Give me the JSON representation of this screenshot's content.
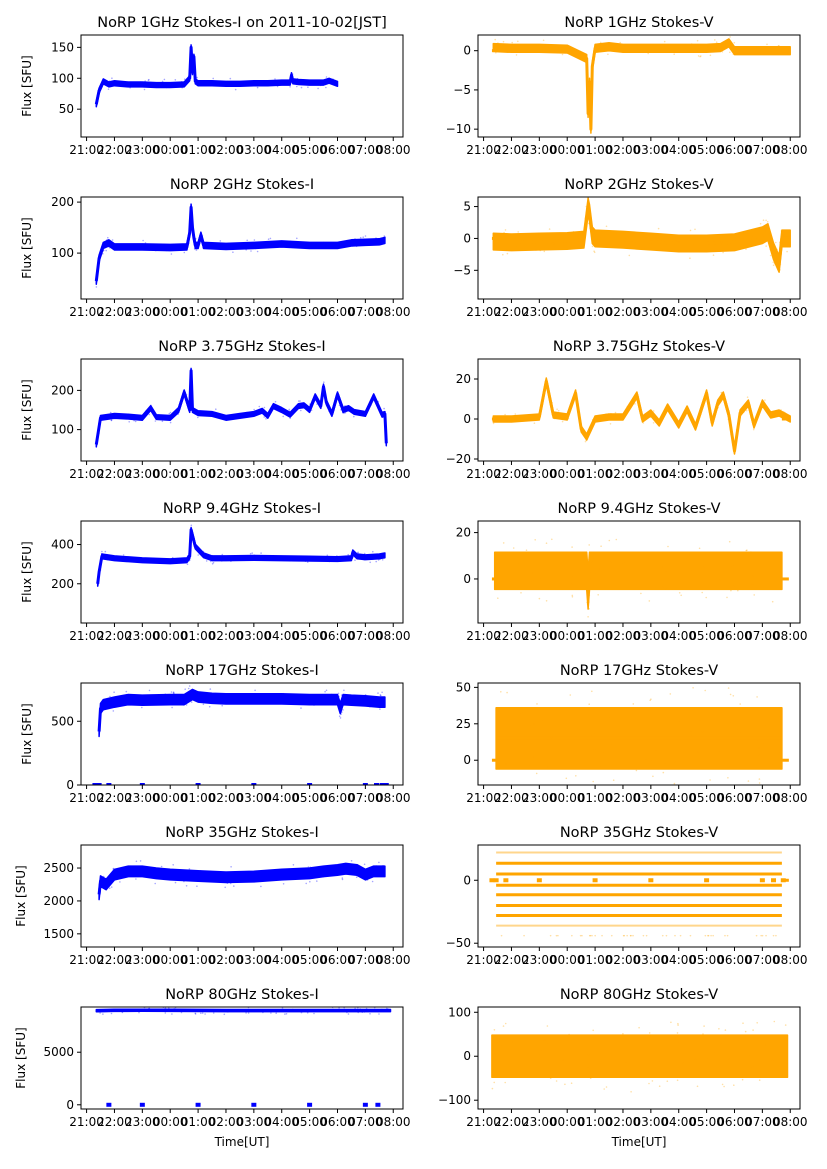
{
  "figure": {
    "xlabel": "Time[UT]",
    "ylabel": "Flux [SFU]",
    "x_tick_labels": [
      "21:00",
      "22:00",
      "23:00",
      "00:00",
      "01:00",
      "02:00",
      "03:00",
      "04:00",
      "05:00",
      "06:00",
      "07:00",
      "08:00"
    ],
    "colors": {
      "stokes_i": "#0000ff",
      "stokes_v": "#ffa500"
    }
  },
  "chart_data": [
    {
      "type": "scatter",
      "title": "NoRP 1GHz Stokes-I on 2011-10-02[JST]",
      "xlabel": "",
      "ylabel": "Flux [SFU]",
      "xlim_hours": [
        20.8,
        32.35
      ],
      "ylim": [
        5,
        170
      ],
      "yticks": [
        50,
        100,
        150
      ],
      "color": "#0000ff",
      "x_hours": [
        21.35,
        21.45,
        21.6,
        21.8,
        22.0,
        22.5,
        23.0,
        23.5,
        24.0,
        24.5,
        24.7,
        24.75,
        24.8,
        24.85,
        24.9,
        25.0,
        25.5,
        26.0,
        26.5,
        27.0,
        27.5,
        28.0,
        28.3,
        28.35,
        28.4,
        28.6,
        29.0,
        29.5,
        29.7,
        30.0
      ],
      "y": [
        58,
        80,
        95,
        90,
        92,
        90,
        90,
        89,
        89,
        90,
        100,
        150,
        110,
        135,
        95,
        92,
        92,
        91,
        91,
        92,
        92,
        93,
        93,
        105,
        95,
        94,
        93,
        93,
        96,
        91
      ],
      "band": 4
    },
    {
      "type": "scatter",
      "title": "NoRP 1GHz Stokes-V",
      "xlabel": "",
      "ylabel": "",
      "xlim_hours": [
        20.8,
        32.35
      ],
      "ylim": [
        -11,
        2
      ],
      "yticks": [
        -10,
        -5,
        0
      ],
      "color": "#ffa500",
      "x_hours": [
        21.35,
        22.0,
        23.0,
        24.0,
        24.7,
        24.75,
        24.8,
        24.85,
        24.9,
        25.0,
        25.5,
        26.0,
        27.0,
        28.0,
        28.5,
        29.0,
        29.5,
        29.8,
        30.0,
        32.0
      ],
      "y": [
        0.4,
        0.3,
        0.3,
        0.2,
        -1,
        -8,
        -4,
        -10,
        -2,
        0.3,
        0.5,
        0.3,
        0.3,
        0.3,
        0.3,
        0.3,
        0.4,
        1.0,
        0,
        0
      ],
      "band": 0.5
    },
    {
      "type": "scatter",
      "title": "NoRP 2GHz Stokes-I",
      "xlabel": "",
      "ylabel": "Flux [SFU]",
      "xlim_hours": [
        20.8,
        32.35
      ],
      "ylim": [
        10,
        210
      ],
      "yticks": [
        100,
        200
      ],
      "color": "#0000ff",
      "x_hours": [
        21.35,
        21.45,
        21.6,
        21.8,
        22.0,
        23.0,
        24.0,
        24.6,
        24.7,
        24.75,
        24.8,
        24.85,
        24.9,
        25.0,
        25.1,
        25.2,
        26.0,
        27.0,
        28.0,
        29.0,
        30.0,
        30.5,
        31.0,
        31.5,
        31.7
      ],
      "y": [
        45,
        90,
        115,
        120,
        112,
        112,
        111,
        112,
        140,
        190,
        150,
        130,
        115,
        115,
        135,
        115,
        113,
        115,
        118,
        115,
        115,
        120,
        121,
        122,
        125
      ],
      "band": 6
    },
    {
      "type": "scatter",
      "title": "NoRP 2GHz Stokes-V",
      "xlabel": "",
      "ylabel": "",
      "xlim_hours": [
        20.8,
        32.35
      ],
      "ylim": [
        -9.5,
        6.5
      ],
      "yticks": [
        -5,
        0,
        5
      ],
      "color": "#ffa500",
      "x_hours": [
        21.35,
        22.0,
        23.0,
        24.0,
        24.6,
        24.75,
        24.8,
        24.9,
        25.0,
        26.0,
        27.0,
        28.0,
        29.0,
        30.0,
        31.0,
        31.2,
        31.4,
        31.6,
        31.7,
        32.0
      ],
      "y": [
        -0.5,
        -0.6,
        -0.5,
        -0.4,
        -0.2,
        5,
        4,
        0.5,
        0,
        -0.2,
        -0.5,
        -0.8,
        -0.8,
        -0.6,
        0.5,
        1,
        -2,
        -4,
        0,
        0
      ],
      "band": 1.3
    },
    {
      "type": "scatter",
      "title": "NoRP 3.75GHz Stokes-I",
      "xlabel": "",
      "ylabel": "Flux [SFU]",
      "xlim_hours": [
        20.8,
        32.35
      ],
      "ylim": [
        20,
        280
      ],
      "yticks": [
        100,
        200
      ],
      "color": "#0000ff",
      "x_hours": [
        21.35,
        21.5,
        22.0,
        22.5,
        23.0,
        23.3,
        23.5,
        24.0,
        24.3,
        24.5,
        24.7,
        24.75,
        24.8,
        25.0,
        25.5,
        26.0,
        26.5,
        27.0,
        27.3,
        27.5,
        27.7,
        28.0,
        28.3,
        28.6,
        28.8,
        29.0,
        29.2,
        29.4,
        29.5,
        29.6,
        29.8,
        30.0,
        30.2,
        30.4,
        30.6,
        31.0,
        31.3,
        31.6,
        31.7,
        31.75
      ],
      "y": [
        62,
        130,
        135,
        133,
        130,
        155,
        132,
        130,
        150,
        195,
        150,
        250,
        150,
        142,
        140,
        130,
        135,
        140,
        148,
        135,
        160,
        150,
        138,
        160,
        162,
        150,
        185,
        160,
        210,
        170,
        140,
        190,
        150,
        155,
        145,
        140,
        185,
        138,
        140,
        65
      ],
      "band": 6
    },
    {
      "type": "scatter",
      "title": "NoRP 3.75GHz Stokes-V",
      "xlabel": "",
      "ylabel": "",
      "xlim_hours": [
        20.8,
        32.35
      ],
      "ylim": [
        -21,
        30
      ],
      "yticks": [
        -20,
        0,
        20
      ],
      "color": "#ffa500",
      "x_hours": [
        21.35,
        22.0,
        23.0,
        23.25,
        23.5,
        24.0,
        24.3,
        24.5,
        24.7,
        25.0,
        25.5,
        26.0,
        26.5,
        26.7,
        27.0,
        27.3,
        27.6,
        28.0,
        28.3,
        28.6,
        29.0,
        29.2,
        29.4,
        29.6,
        29.8,
        30.0,
        30.2,
        30.5,
        30.7,
        31.0,
        31.3,
        31.6,
        32.0
      ],
      "y": [
        0,
        0,
        1,
        19,
        2,
        1,
        13,
        -5,
        -9,
        0,
        1,
        1,
        12,
        0,
        3,
        -2,
        6,
        -3,
        5,
        -4,
        13,
        -2,
        8,
        12,
        2,
        -16,
        3,
        8,
        -3,
        8,
        2,
        3,
        0
      ],
      "band": 1.5
    },
    {
      "type": "scatter",
      "title": "NoRP 9.4GHz Stokes-I",
      "xlabel": "",
      "ylabel": "Flux [SFU]",
      "xlim_hours": [
        20.8,
        32.35
      ],
      "ylim": [
        0,
        520
      ],
      "yticks": [
        200,
        400
      ],
      "color": "#0000ff",
      "x_hours": [
        21.4,
        21.45,
        21.55,
        22.0,
        23.0,
        24.0,
        24.6,
        24.7,
        24.75,
        24.9,
        25.2,
        25.5,
        26.0,
        27.0,
        28.0,
        29.0,
        30.0,
        30.5,
        30.55,
        30.7,
        31.0,
        31.5,
        31.7
      ],
      "y": [
        200,
        260,
        340,
        330,
        320,
        315,
        320,
        340,
        475,
        390,
        345,
        330,
        330,
        332,
        330,
        328,
        326,
        330,
        360,
        340,
        335,
        340,
        345
      ],
      "band": 12
    },
    {
      "type": "scatter",
      "title": "NoRP 9.4GHz Stokes-V",
      "xlabel": "",
      "ylabel": "",
      "xlim_hours": [
        20.8,
        32.35
      ],
      "ylim": [
        -19,
        25
      ],
      "yticks": [
        0,
        20
      ],
      "color": "#ffa500",
      "x_hours": [
        21.4,
        22.0,
        23.0,
        24.0,
        24.7,
        24.75,
        24.8,
        25.0,
        26.0,
        27.0,
        28.0,
        29.0,
        30.0,
        31.0,
        31.7
      ],
      "y": [
        3.5,
        3.5,
        3.5,
        3.5,
        3.5,
        -5,
        3.5,
        3.5,
        3.5,
        3.5,
        3.5,
        3.5,
        3.5,
        3.5,
        3.5
      ],
      "band": 8
    },
    {
      "type": "scatter",
      "title": "NoRP 17GHz Stokes-I",
      "xlabel": "",
      "ylabel": "Flux [SFU]",
      "xlim_hours": [
        20.8,
        32.35
      ],
      "ylim": [
        0,
        800
      ],
      "yticks": [
        0,
        500
      ],
      "color": "#0000ff",
      "x_hours": [
        21.45,
        21.5,
        21.6,
        22.0,
        22.5,
        23.0,
        24.0,
        24.5,
        24.8,
        25.0,
        25.5,
        26.0,
        27.0,
        28.0,
        29.0,
        30.0,
        30.1,
        30.2,
        30.5,
        31.0,
        31.5,
        31.7
      ],
      "y": [
        420,
        600,
        630,
        650,
        670,
        665,
        670,
        670,
        710,
        690,
        680,
        675,
        675,
        675,
        670,
        670,
        600,
        670,
        665,
        660,
        650,
        650
      ],
      "band": 40,
      "zero_markers_hours": [
        21.3,
        21.45,
        21.8,
        23.0,
        25.0,
        27.0,
        29.0,
        31.0,
        31.4,
        31.6,
        31.75
      ]
    },
    {
      "type": "scatter",
      "title": "NoRP 17GHz Stokes-V",
      "xlabel": "",
      "ylabel": "",
      "xlim_hours": [
        20.8,
        32.35
      ],
      "ylim": [
        -17,
        53
      ],
      "yticks": [
        0,
        25,
        50
      ],
      "color": "#ffa500",
      "x_hours": [
        21.45,
        22.0,
        23.0,
        24.0,
        25.0,
        26.0,
        27.0,
        28.0,
        29.0,
        30.0,
        31.0,
        31.7
      ],
      "y": [
        15,
        15,
        15,
        15,
        15,
        15,
        15,
        15,
        15,
        15,
        15,
        15
      ],
      "band": 21
    },
    {
      "type": "scatter",
      "title": "NoRP 35GHz Stokes-I",
      "xlabel": "",
      "ylabel": "Flux [SFU]",
      "xlim_hours": [
        20.8,
        32.35
      ],
      "ylim": [
        1300,
        2850
      ],
      "yticks": [
        1500,
        2000,
        2500
      ],
      "color": "#0000ff",
      "x_hours": [
        21.45,
        21.5,
        21.7,
        22.0,
        22.5,
        23.0,
        23.5,
        24.0,
        25.0,
        26.0,
        27.0,
        28.0,
        29.0,
        29.5,
        30.0,
        30.3,
        30.7,
        31.0,
        31.3,
        31.7
      ],
      "y": [
        2100,
        2300,
        2250,
        2400,
        2450,
        2450,
        2420,
        2400,
        2380,
        2360,
        2370,
        2400,
        2420,
        2450,
        2470,
        2490,
        2470,
        2400,
        2450,
        2450
      ],
      "band": 80
    },
    {
      "type": "scatter",
      "title": "NoRP 35GHz Stokes-V",
      "xlabel": "",
      "ylabel": "",
      "xlim_hours": [
        20.8,
        32.35
      ],
      "ylim": [
        -53,
        28
      ],
      "yticks": [
        -50,
        0
      ],
      "color": "#ffa500",
      "levels": [
        22,
        13.5,
        5,
        -4,
        -11.5,
        -20,
        -28,
        -36
      ],
      "zero_markers_hours": [
        21.3,
        21.45,
        21.8,
        23.0,
        25.0,
        27.0,
        29.0,
        31.0,
        31.4,
        31.75
      ]
    },
    {
      "type": "scatter",
      "title": "NoRP 80GHz Stokes-I",
      "xlabel": "Time[UT]",
      "ylabel": "Flux [SFU]",
      "xlim_hours": [
        20.8,
        32.35
      ],
      "ylim": [
        -400,
        9300
      ],
      "yticks": [
        0,
        5000
      ],
      "color": "#0000ff",
      "x_hours": [
        21.35,
        22.0,
        23.0,
        24.0,
        25.0,
        26.0,
        27.0,
        28.0,
        29.0,
        30.0,
        31.0,
        31.9
      ],
      "y": [
        8950,
        8980,
        8990,
        8980,
        8970,
        8960,
        8960,
        8960,
        8960,
        8960,
        8960,
        8960
      ],
      "band": 100,
      "zero_markers_hours": [
        21.8,
        23.0,
        25.0,
        27.0,
        29.0,
        31.0,
        31.45
      ]
    },
    {
      "type": "scatter",
      "title": "NoRP 80GHz Stokes-V",
      "xlabel": "Time[UT]",
      "ylabel": "",
      "xlim_hours": [
        20.8,
        32.35
      ],
      "ylim": [
        -120,
        112
      ],
      "yticks": [
        -100,
        0,
        100
      ],
      "color": "#ffa500",
      "x_hours": [
        21.3,
        21.6,
        22.0,
        23.0,
        24.0,
        25.0,
        26.0,
        27.0,
        28.0,
        29.0,
        30.0,
        30.5,
        31.0,
        31.4,
        31.9
      ],
      "y": [
        0,
        0,
        0,
        0,
        0,
        0,
        0,
        0,
        0,
        0,
        0,
        0,
        0,
        0,
        0
      ],
      "band": 48
    }
  ]
}
